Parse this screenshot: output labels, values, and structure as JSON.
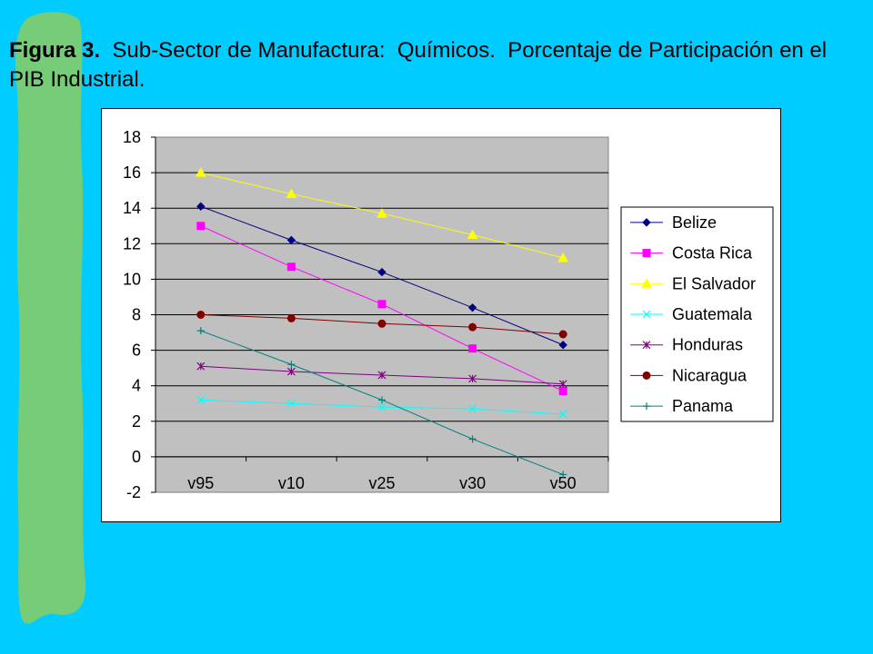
{
  "title": {
    "lead": "Figura 3.",
    "rest": "  Sub-Sector de Manufactura:  Químicos.  Porcentaje de Participación en el PIB Industrial."
  },
  "colors": {
    "background": "#00CCFF",
    "stripe": "#77CC77",
    "plot_area": "#C0C0C0"
  },
  "chart_data": {
    "type": "line",
    "categories": [
      "v95",
      "v10",
      "v25",
      "v30",
      "v50"
    ],
    "ylim": [
      -2,
      18
    ],
    "yticks": [
      -2,
      0,
      2,
      4,
      6,
      8,
      10,
      12,
      14,
      16,
      18
    ],
    "grid": true,
    "legend_position": "right",
    "series": [
      {
        "name": "Belize",
        "color": "#000080",
        "marker": "diamond",
        "values": [
          14.1,
          12.2,
          10.4,
          8.4,
          6.3
        ]
      },
      {
        "name": "Costa Rica",
        "color": "#FF00FF",
        "marker": "square",
        "values": [
          13.0,
          10.7,
          8.6,
          6.1,
          3.7
        ]
      },
      {
        "name": "El Salvador",
        "color": "#FFFF00",
        "marker": "triangle",
        "values": [
          16.0,
          14.8,
          13.7,
          12.5,
          11.2
        ]
      },
      {
        "name": "Guatemala",
        "color": "#00FFFF",
        "marker": "x",
        "values": [
          3.2,
          3.0,
          2.8,
          2.7,
          2.4
        ]
      },
      {
        "name": "Honduras",
        "color": "#800080",
        "marker": "star",
        "values": [
          5.1,
          4.8,
          4.6,
          4.4,
          4.1
        ]
      },
      {
        "name": "Nicaragua",
        "color": "#800000",
        "marker": "circle",
        "values": [
          8.0,
          7.8,
          7.5,
          7.3,
          6.9
        ]
      },
      {
        "name": "Panama",
        "color": "#008080",
        "marker": "plus",
        "values": [
          7.1,
          5.2,
          3.2,
          1.0,
          -1.0
        ]
      }
    ]
  }
}
